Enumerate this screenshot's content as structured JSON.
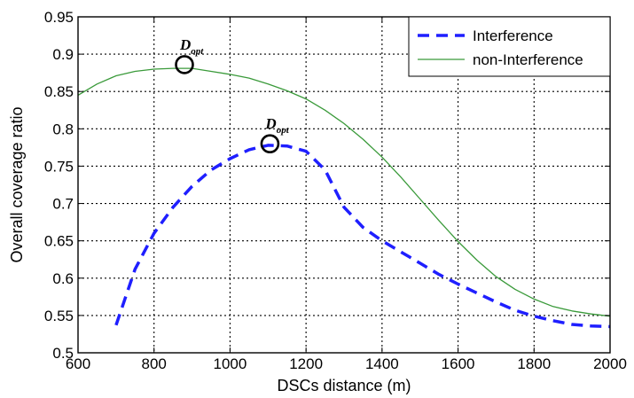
{
  "chart_data": {
    "type": "line",
    "xlabel": "DSCs distance (m)",
    "ylabel": "Overall coverage ratio",
    "xlim": [
      600,
      2000
    ],
    "ylim": [
      0.5,
      0.95
    ],
    "xticks": [
      600,
      800,
      1000,
      1200,
      1400,
      1600,
      1800,
      2000
    ],
    "yticks": [
      0.5,
      0.55,
      0.6,
      0.65,
      0.7,
      0.75,
      0.8,
      0.85,
      0.9,
      0.95
    ],
    "xtick_labels": [
      "600",
      "800",
      "1000",
      "1200",
      "1400",
      "1600",
      "1800",
      "2000"
    ],
    "ytick_labels": [
      "0.5",
      "0.55",
      "0.6",
      "0.65",
      "0.7",
      "0.75",
      "0.8",
      "0.85",
      "0.9",
      "0.95"
    ],
    "grid": true,
    "legend_position": "top-right",
    "series": [
      {
        "name": "Interference",
        "style": "dashed",
        "color": "#1f1fff",
        "x": [
          700,
          750,
          800,
          850,
          900,
          950,
          1000,
          1050,
          1100,
          1150,
          1200,
          1250,
          1300,
          1350,
          1400,
          1450,
          1500,
          1550,
          1600,
          1650,
          1700,
          1750,
          1800,
          1850,
          1900,
          1950,
          2000
        ],
        "y": [
          0.537,
          0.612,
          0.66,
          0.695,
          0.723,
          0.745,
          0.76,
          0.772,
          0.778,
          0.777,
          0.77,
          0.745,
          0.695,
          0.668,
          0.65,
          0.635,
          0.62,
          0.605,
          0.592,
          0.58,
          0.568,
          0.557,
          0.549,
          0.543,
          0.538,
          0.536,
          0.535
        ]
      },
      {
        "name": "non-Interference",
        "style": "solid",
        "color": "#3a9a3a",
        "x": [
          600,
          650,
          700,
          750,
          800,
          850,
          900,
          950,
          1000,
          1050,
          1100,
          1150,
          1200,
          1250,
          1300,
          1350,
          1400,
          1450,
          1500,
          1550,
          1600,
          1650,
          1700,
          1750,
          1800,
          1850,
          1900,
          1950,
          2000
        ],
        "y": [
          0.845,
          0.86,
          0.871,
          0.877,
          0.88,
          0.881,
          0.881,
          0.877,
          0.873,
          0.868,
          0.86,
          0.851,
          0.84,
          0.825,
          0.807,
          0.786,
          0.762,
          0.735,
          0.706,
          0.677,
          0.649,
          0.624,
          0.602,
          0.585,
          0.572,
          0.562,
          0.556,
          0.552,
          0.549
        ]
      }
    ],
    "annotations": [
      {
        "label": "D",
        "subscript": "opt",
        "x": 880,
        "y": 0.886
      },
      {
        "label": "D",
        "subscript": "opt",
        "x": 1105,
        "y": 0.78
      }
    ]
  }
}
